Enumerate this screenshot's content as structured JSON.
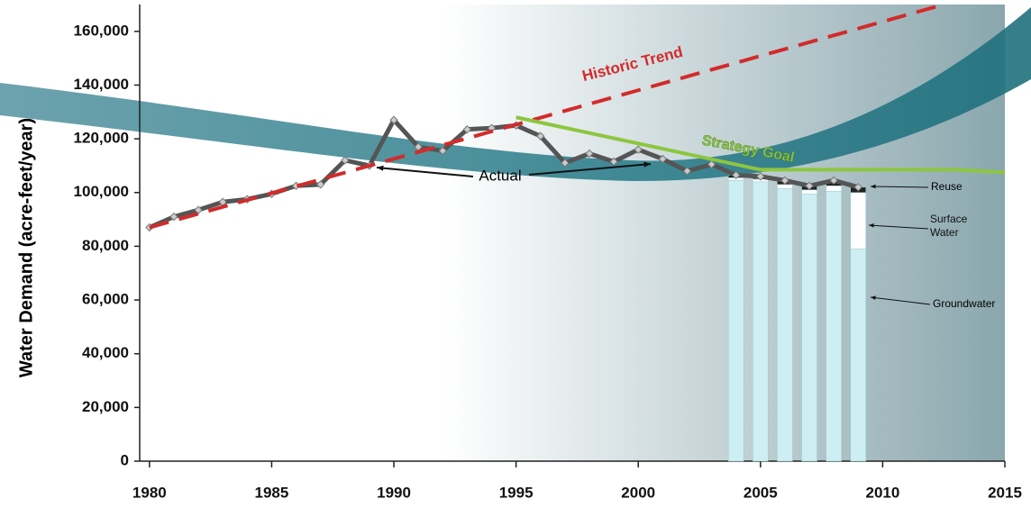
{
  "chart_data": {
    "type": "line",
    "ylabel": "Water Demand (acre-feet/year)",
    "xlim": [
      1979.6,
      2015
    ],
    "ylim": [
      0,
      170000
    ],
    "xticks": [
      1980,
      1985,
      1990,
      1995,
      2000,
      2005,
      2010,
      2015
    ],
    "yticks": [
      0,
      {
        "value": 20000,
        "label": "20,000"
      },
      {
        "value": 40000,
        "label": "40,000"
      },
      {
        "value": 60000,
        "label": "60,000"
      },
      {
        "value": 80000,
        "label": "80,000"
      },
      {
        "value": 100000,
        "label": "100,000"
      },
      {
        "value": 120000,
        "label": "120,000"
      },
      {
        "value": 140000,
        "label": "140,000"
      },
      {
        "value": 160000,
        "label": "160,000"
      }
    ],
    "series": [
      {
        "name": "Actual",
        "color": "#555555",
        "x": [
          1980,
          1981,
          1982,
          1983,
          1984,
          1985,
          1986,
          1987,
          1988,
          1989,
          1990,
          1991,
          1992,
          1993,
          1994,
          1995,
          1996,
          1997,
          1998,
          1999,
          2000,
          2001,
          2002,
          2003,
          2004,
          2005,
          2006,
          2007,
          2008,
          2009
        ],
        "values": [
          87000,
          91000,
          93500,
          96500,
          97500,
          99500,
          102500,
          103000,
          112000,
          110000,
          127000,
          117000,
          115500,
          123500,
          124000,
          125000,
          121000,
          111000,
          114500,
          111500,
          116000,
          112500,
          108000,
          110500,
          106500,
          106000,
          104500,
          102500,
          104500,
          102000
        ]
      },
      {
        "name": "Historic Trend",
        "color": "#d22b2b",
        "dashed": true,
        "x": [
          1980,
          2012.5
        ],
        "values": [
          87000,
          170000
        ]
      },
      {
        "name": "Strategy Goal",
        "color": "#8cc63f",
        "x": [
          1995,
          2005,
          2013,
          2015
        ],
        "values": [
          128000,
          108500,
          108500,
          107500
        ]
      }
    ],
    "bars": {
      "x": [
        2004,
        2005,
        2006,
        2007,
        2008,
        2009
      ],
      "series": [
        {
          "name": "Groundwater",
          "color": "#cdeef2",
          "values": [
            104500,
            104000,
            101500,
            99500,
            100500,
            79000
          ]
        },
        {
          "name": "Surface Water",
          "color": "#ffffff",
          "values": [
            1000,
            1000,
            1500,
            1500,
            2000,
            21000
          ]
        },
        {
          "name": "Reuse",
          "color": "#222222",
          "values": [
            1000,
            1000,
            1500,
            1500,
            2000,
            2000
          ]
        }
      ]
    }
  }
}
